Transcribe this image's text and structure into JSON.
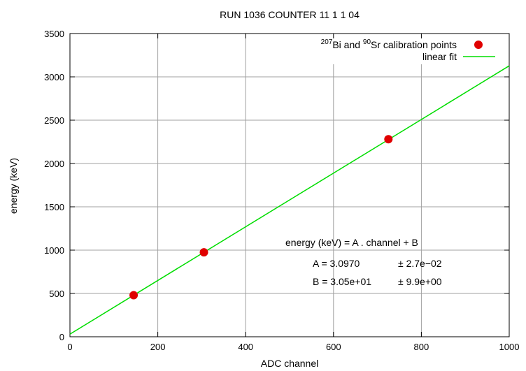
{
  "chart_data": {
    "type": "scatter",
    "title": "RUN 1036 COUNTER 11 1 1 04",
    "xlabel": "ADC channel",
    "ylabel": "energy (keV)",
    "xlim": [
      0,
      1000
    ],
    "ylim": [
      0,
      3500
    ],
    "xticks": [
      0,
      200,
      400,
      600,
      800,
      1000
    ],
    "yticks": [
      0,
      500,
      1000,
      1500,
      2000,
      2500,
      3000,
      3500
    ],
    "grid": true,
    "legend_position": "top-right",
    "series": [
      {
        "name_parts": [
          "207",
          "Bi and ",
          "90",
          "Sr calibration points"
        ],
        "type": "scatter",
        "color": "#e00000",
        "points": [
          [
            145,
            480
          ],
          [
            305,
            975
          ],
          [
            725,
            2280
          ]
        ]
      },
      {
        "name": "linear fit",
        "type": "line",
        "color": "#00dd00",
        "slope": 3.097,
        "intercept": 30.5
      }
    ],
    "annotations": {
      "formula": "energy (keV) = A . channel + B",
      "a_label": "A = 3.0970",
      "a_error": "± 2.7e−02",
      "b_label": "B = 3.05e+01",
      "b_error": "± 9.9e+00"
    }
  }
}
